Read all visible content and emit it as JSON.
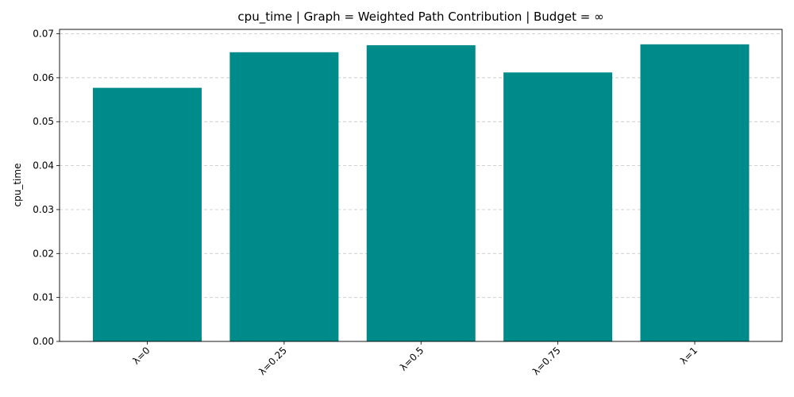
{
  "chart_data": {
    "type": "bar",
    "title": "cpu_time | Graph = Weighted Path Contribution | Budget = ∞",
    "xlabel": "",
    "ylabel": "cpu_time",
    "categories": [
      "λ=0",
      "λ=0.25",
      "λ=0.5",
      "λ=0.75",
      "λ=1"
    ],
    "values": [
      0.0577,
      0.0658,
      0.0674,
      0.0612,
      0.0676
    ],
    "ylim": [
      0,
      0.071
    ],
    "yticks": [
      0.0,
      0.01,
      0.02,
      0.03,
      0.04,
      0.05,
      0.06,
      0.07
    ],
    "ytick_labels": [
      "0.00",
      "0.01",
      "0.02",
      "0.03",
      "0.04",
      "0.05",
      "0.06",
      "0.07"
    ],
    "grid": "y-dashed",
    "bar_color": "#008B8B",
    "xtick_rotation": 45
  }
}
